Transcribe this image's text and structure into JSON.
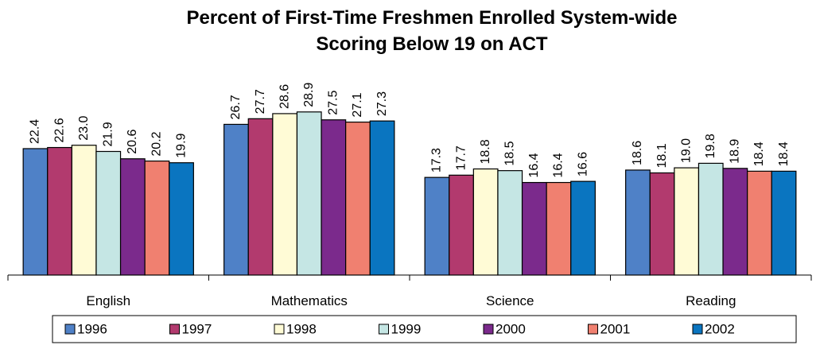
{
  "chart_data": {
    "type": "bar",
    "title": [
      "Percent of First-Time Freshmen Enrolled System-wide",
      "Scoring Below 19 on ACT"
    ],
    "categories": [
      "English",
      "Mathematics",
      "Science",
      "Reading"
    ],
    "ylim": [
      0,
      30
    ],
    "series": [
      {
        "name": "1996",
        "color": "#4f81c7",
        "values": [
          22.4,
          26.7,
          17.3,
          18.6
        ],
        "value_labels": [
          "22.4",
          "26.7",
          "17.3",
          "18.6"
        ]
      },
      {
        "name": "1997",
        "color": "#b23a6e",
        "values": [
          22.6,
          27.7,
          17.7,
          18.1
        ],
        "value_labels": [
          "22.6",
          "27.7",
          "17.7",
          "18.1"
        ]
      },
      {
        "name": "1998",
        "color": "#fffbd6",
        "values": [
          23.0,
          28.6,
          18.8,
          19.0
        ],
        "value_labels": [
          "23.0",
          "28.6",
          "18.8",
          "19.0"
        ]
      },
      {
        "name": "1999",
        "color": "#c5e6e4",
        "values": [
          21.9,
          28.9,
          18.5,
          19.8
        ],
        "value_labels": [
          "21.9",
          "28.9",
          "18.5",
          "19.8"
        ]
      },
      {
        "name": "2000",
        "color": "#7b2a8c",
        "values": [
          20.6,
          27.5,
          16.4,
          18.9
        ],
        "value_labels": [
          "20.6",
          "27.5",
          "16.4",
          "18.9"
        ]
      },
      {
        "name": "2001",
        "color": "#f08070",
        "values": [
          20.2,
          27.1,
          16.4,
          18.4
        ],
        "value_labels": [
          "20.2",
          "27.1",
          "16.4",
          "18.4"
        ]
      },
      {
        "name": "2002",
        "color": "#0a75c0",
        "values": [
          19.9,
          27.3,
          16.6,
          18.4
        ],
        "value_labels": [
          "19.9",
          "27.3",
          "16.6",
          "18.4"
        ]
      }
    ]
  }
}
